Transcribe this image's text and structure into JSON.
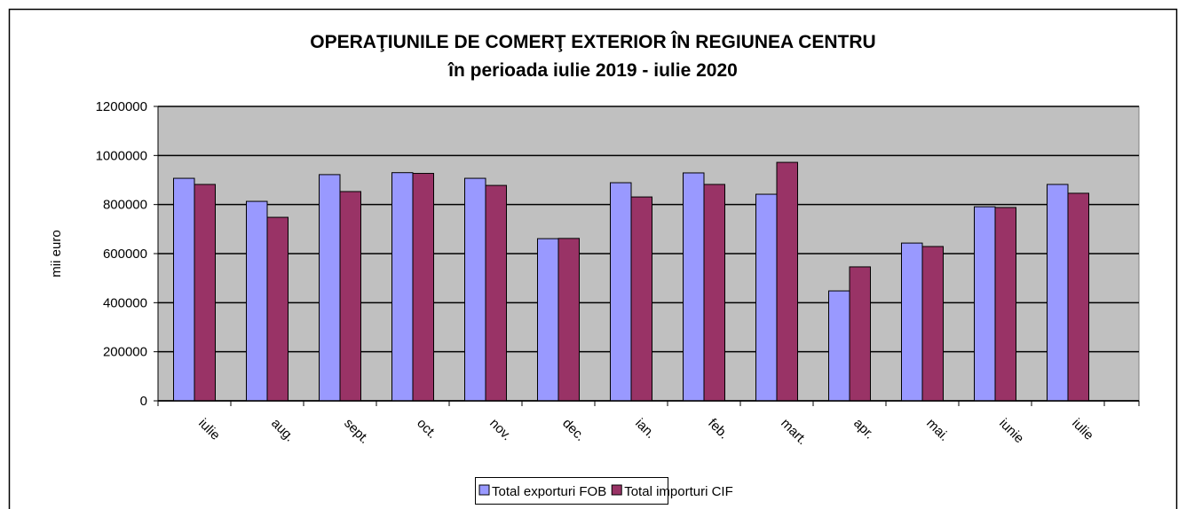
{
  "chart_data": {
    "type": "bar",
    "title": "OPERAŢIUNILE DE COMERŢ EXTERIOR ÎN REGIUNEA CENTRU",
    "subtitle": "în perioada iulie 2019 - iulie 2020",
    "y_label": "mii euro",
    "categories": [
      "iulie",
      "aug.",
      "sept.",
      "oct.",
      "nov.",
      "dec.",
      "ian.",
      "feb.",
      "mart.",
      "apr.",
      "mai.",
      "iunie",
      "iulie"
    ],
    "series": [
      {
        "name": "Total exporturi FOB",
        "color": "#9999ff",
        "values": [
          907000,
          813000,
          922000,
          930000,
          907000,
          661000,
          889000,
          929000,
          842000,
          448000,
          643000,
          791000,
          882000
        ]
      },
      {
        "name": "Total importuri CIF",
        "color": "#993366",
        "values": [
          882000,
          748000,
          853000,
          927000,
          878000,
          662000,
          831000,
          882000,
          972000,
          546000,
          629000,
          788000,
          846000
        ]
      }
    ],
    "ylim": [
      0,
      1200000
    ],
    "yticks": [
      0,
      200000,
      400000,
      600000,
      800000,
      1000000,
      1200000
    ],
    "grid": true
  }
}
